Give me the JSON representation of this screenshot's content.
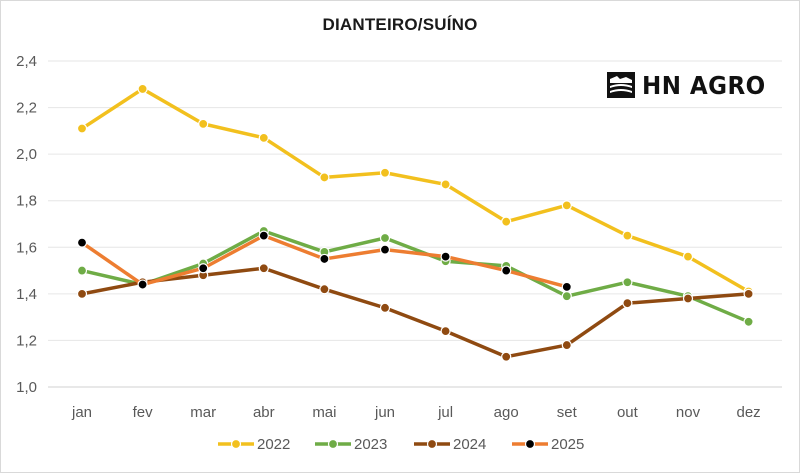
{
  "chart_data": {
    "type": "line",
    "title": "DIANTEIRO/SUÍNO",
    "categories": [
      "jan",
      "fev",
      "mar",
      "abr",
      "mai",
      "jun",
      "jul",
      "ago",
      "set",
      "out",
      "nov",
      "dez"
    ],
    "y_ticks": [
      "1,0",
      "1,2",
      "1,4",
      "1,6",
      "1,8",
      "2,0",
      "2,2",
      "2,4"
    ],
    "ylim": [
      1.0,
      2.4
    ],
    "grid": true,
    "legend_position": "bottom",
    "series": [
      {
        "name": "2022",
        "color": "#f2c01e",
        "marker": "#f2c01e",
        "values": [
          2.11,
          2.28,
          2.13,
          2.07,
          1.9,
          1.92,
          1.87,
          1.71,
          1.78,
          1.65,
          1.56,
          1.41
        ]
      },
      {
        "name": "2023",
        "color": "#6fac46",
        "marker": "#6fac46",
        "values": [
          1.5,
          1.44,
          1.53,
          1.67,
          1.58,
          1.64,
          1.54,
          1.52,
          1.39,
          1.45,
          1.39,
          1.28
        ]
      },
      {
        "name": "2024",
        "color": "#8f4a11",
        "marker": "#8f4a11",
        "values": [
          1.4,
          1.45,
          1.48,
          1.51,
          1.42,
          1.34,
          1.24,
          1.13,
          1.18,
          1.36,
          1.38,
          1.4
        ]
      },
      {
        "name": "2025",
        "color": "#ed7d31",
        "marker": "#000000",
        "values": [
          1.62,
          1.44,
          1.51,
          1.65,
          1.55,
          1.59,
          1.56,
          1.5,
          1.43,
          null,
          null,
          null
        ]
      }
    ]
  },
  "logo": {
    "text": "HN AGRO"
  }
}
